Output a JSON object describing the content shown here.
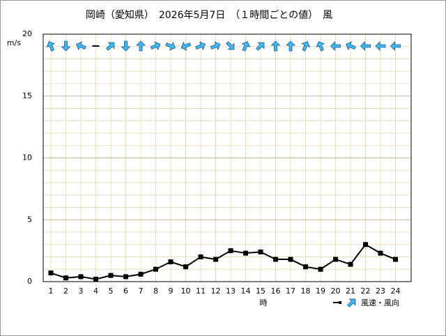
{
  "chart_data": {
    "type": "line",
    "title": "岡崎（愛知県）　2026年5月7日　（１時間ごとの値）　風",
    "y_unit": "m/s",
    "x_label": "時",
    "categories": [
      "1",
      "2",
      "3",
      "4",
      "5",
      "6",
      "7",
      "8",
      "9",
      "10",
      "11",
      "12",
      "13",
      "14",
      "15",
      "16",
      "17",
      "18",
      "19",
      "20",
      "21",
      "22",
      "23",
      "24"
    ],
    "series": [
      {
        "name": "風速・風向",
        "color": "#000000",
        "values": [
          0.7,
          0.3,
          0.4,
          0.2,
          0.5,
          0.4,
          0.6,
          1.0,
          1.6,
          1.2,
          2.0,
          1.8,
          2.5,
          2.3,
          2.4,
          1.8,
          1.8,
          1.2,
          1.0,
          1.8,
          1.4,
          3.0,
          2.3,
          1.8
        ],
        "directions": [
          337.5,
          180,
          292.5,
          null,
          45,
          180,
          0,
          67.5,
          112.5,
          247.5,
          67.5,
          67.5,
          135,
          22.5,
          45,
          0,
          0,
          22.5,
          337.5,
          270,
          292.5,
          270,
          270,
          270
        ],
        "arrow_color": "#44b8f4"
      }
    ],
    "ylim": [
      0,
      20
    ],
    "yticks": [
      0,
      5,
      10,
      15,
      20
    ],
    "yminorticks": [
      1,
      2,
      3,
      4,
      6,
      7,
      8,
      9,
      11,
      12,
      13,
      14,
      16,
      17,
      18,
      19
    ],
    "grid": true
  }
}
